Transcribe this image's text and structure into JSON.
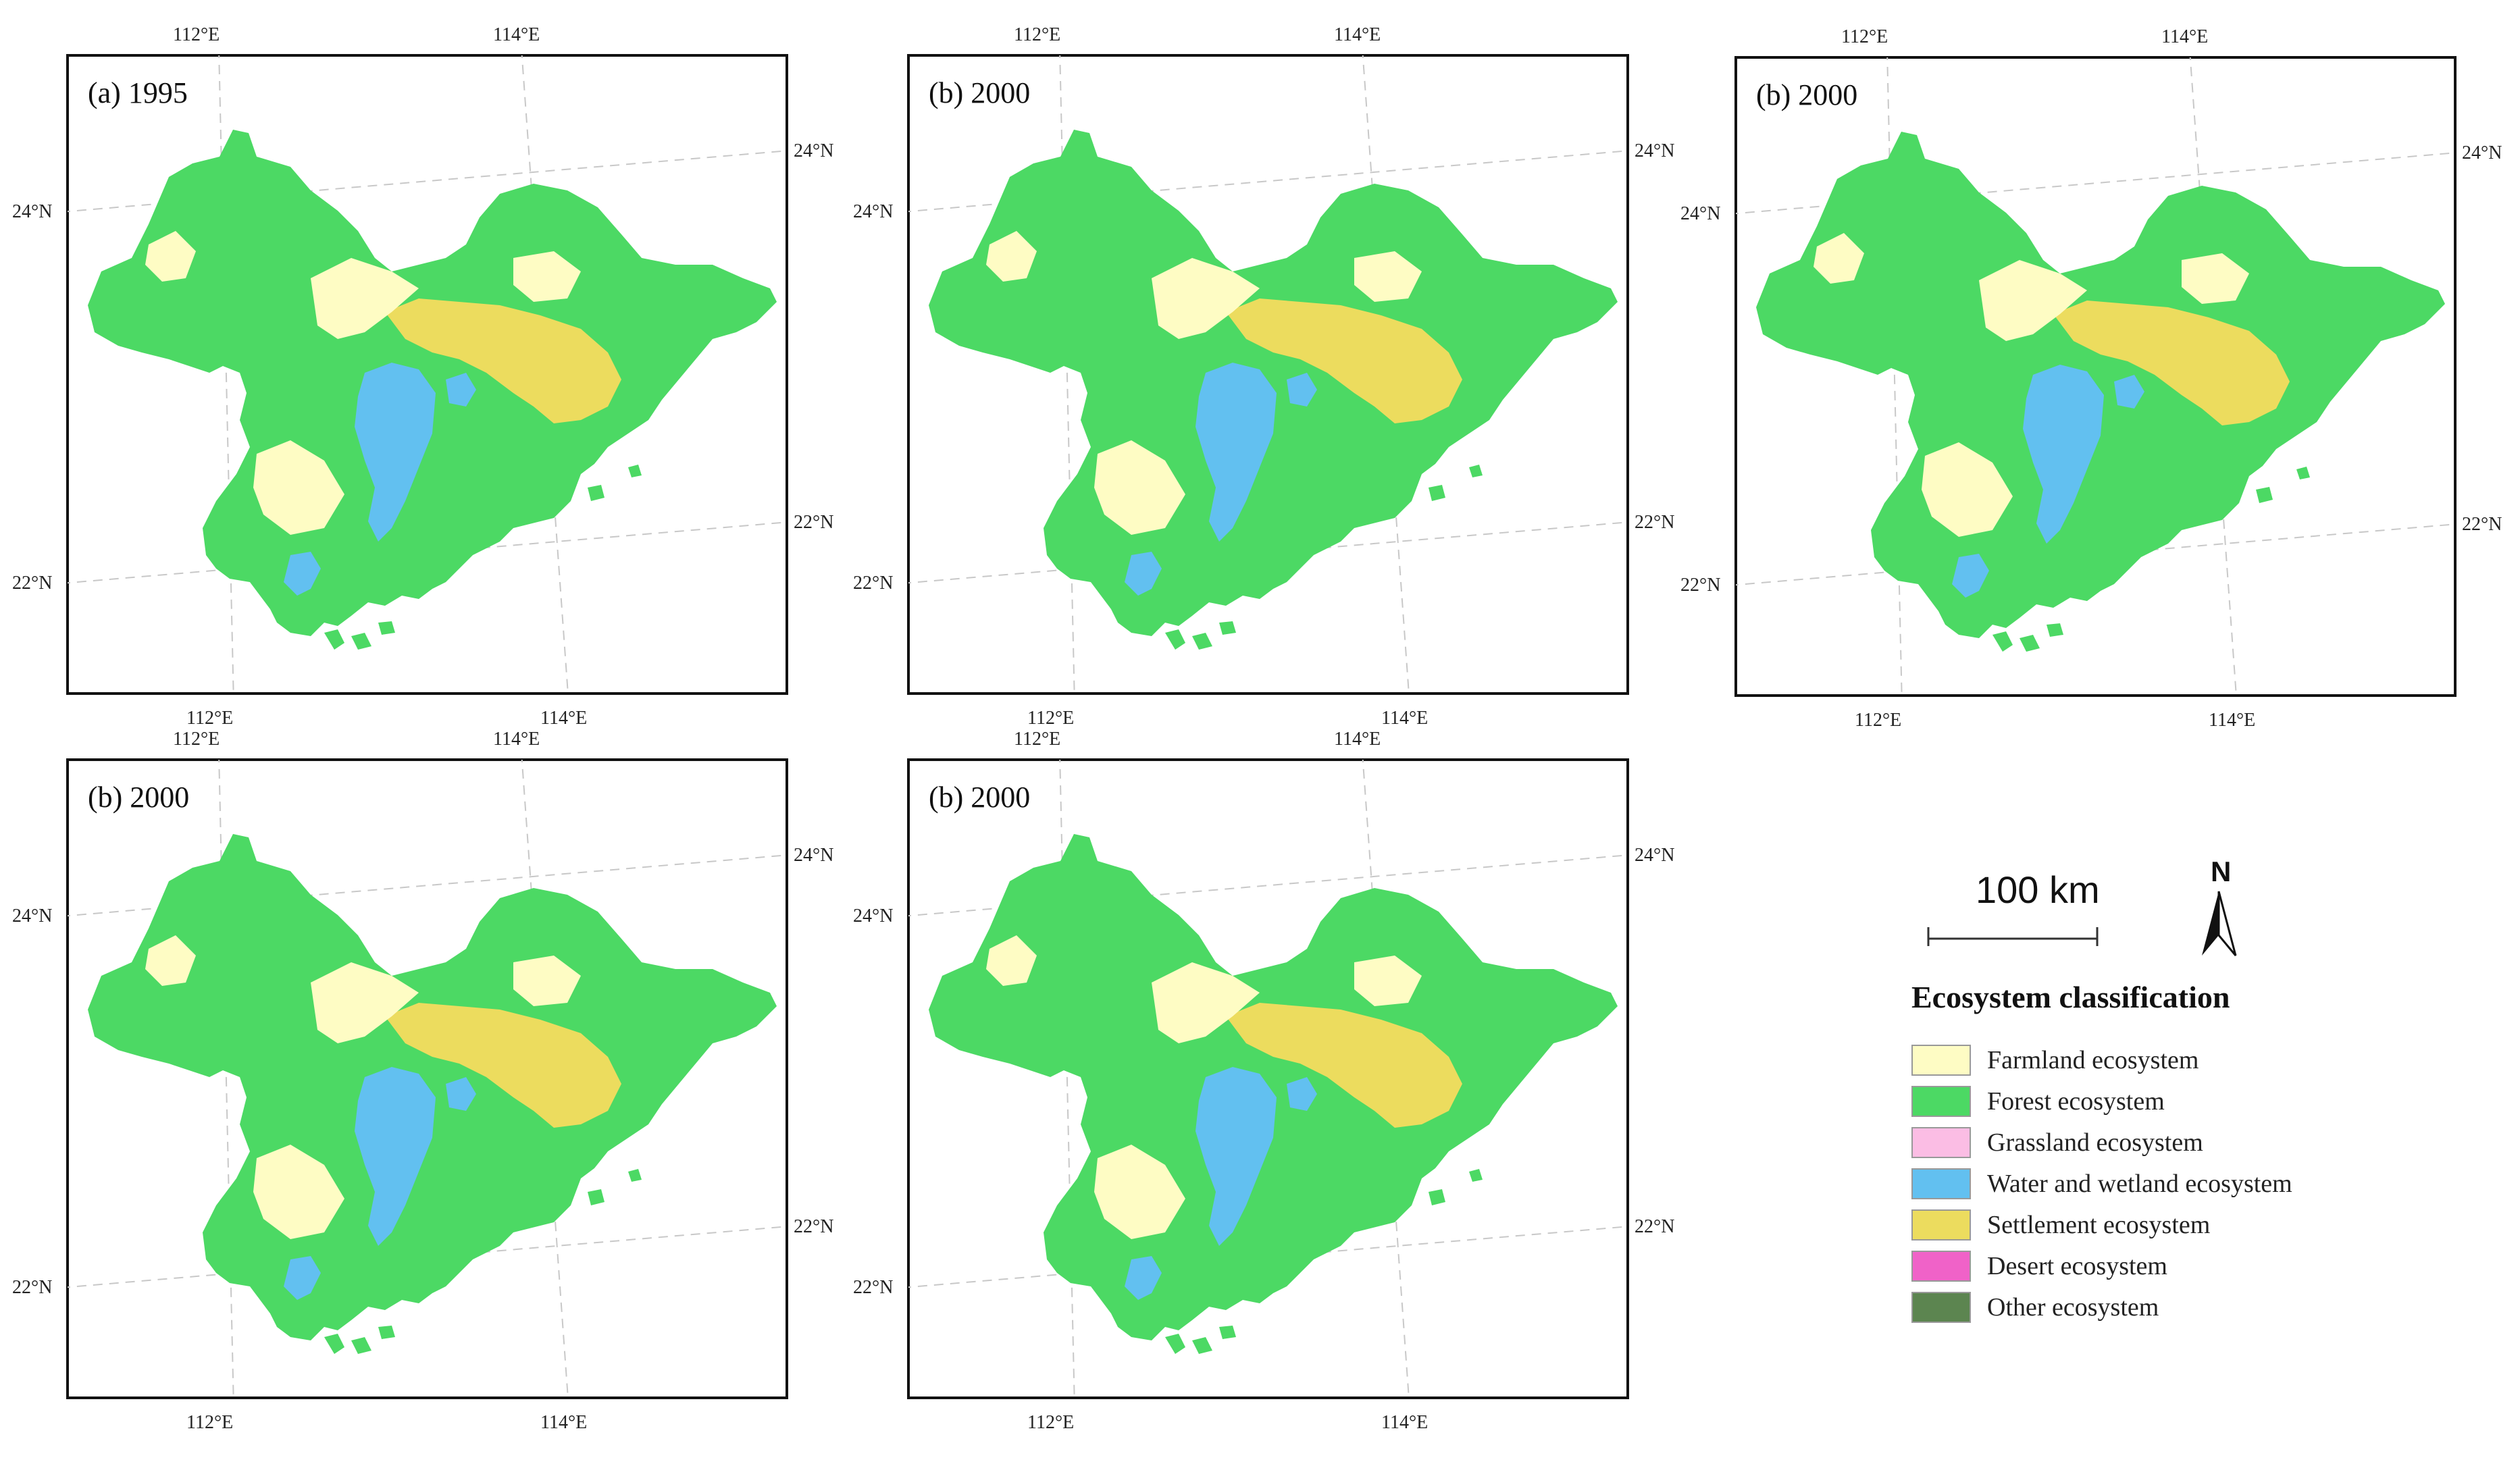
{
  "panels": [
    {
      "title": "(a) 1995"
    },
    {
      "title": "(b) 2000"
    },
    {
      "title": "(b) 2000"
    },
    {
      "title": "(b) 2000"
    },
    {
      "title": "(b) 2000"
    }
  ],
  "axis_labels": {
    "lon_left": "112°E",
    "lon_right": "114°E",
    "lat_top": "24°N",
    "lat_bottom": "22°N"
  },
  "scale_bar": {
    "label": "100 km"
  },
  "north_arrow": {
    "label": "N"
  },
  "legend": {
    "title": "Ecosystem classification",
    "items": [
      {
        "label": "Farmland ecosystem",
        "color": "#fefcc4"
      },
      {
        "label": "Forest ecosystem",
        "color": "#4cd964"
      },
      {
        "label": "Grassland ecosystem",
        "color": "#fbbde4"
      },
      {
        "label": "Water and wetland ecosystem",
        "color": "#62c0f0"
      },
      {
        "label": "Settlement ecosystem",
        "color": "#ecdc5e"
      },
      {
        "label": "Desert ecosystem",
        "color": "#f062c8"
      },
      {
        "label": "Other ecosystem",
        "color": "#5c8550"
      }
    ]
  }
}
